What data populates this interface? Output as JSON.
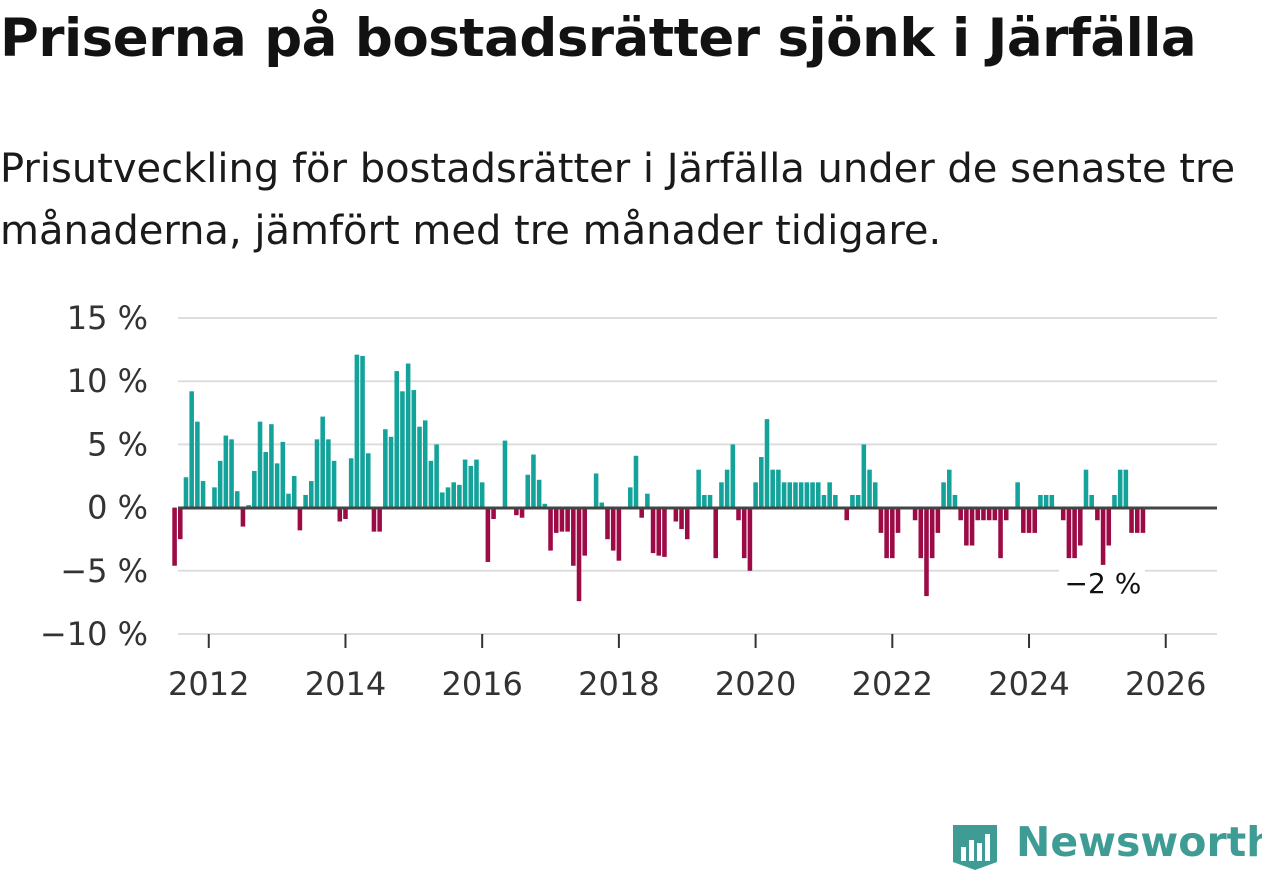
{
  "header": {
    "title": "Priserna på bostadsrätter sjönk i Järfälla",
    "subtitle": "Prisutveckling för bostadsrätter i Järfälla under de senaste tre månaderna, jämfört med tre månader tidigare."
  },
  "brand": {
    "name": "Newsworthy",
    "icon": "newsworthy-logo-icon",
    "color": "#3f9c95"
  },
  "chart_data": {
    "type": "bar",
    "title": "Priserna på bostadsrätter sjönk i Järfälla",
    "subtitle": "Prisutveckling för bostadsrätter i Järfälla under de senaste tre månaderna, jämfört med tre månader tidigare.",
    "xlabel": "",
    "ylabel": "",
    "unit": "%",
    "start": {
      "year": 2011,
      "month": 7
    },
    "frequency": "monthly",
    "xlim": [
      2011.55,
      2026.75
    ],
    "ylim": [
      -10,
      15
    ],
    "yticks": [
      15,
      10,
      5,
      0,
      -5,
      -10
    ],
    "ytick_labels": [
      "15 %",
      "10 %",
      "5 %",
      "0 %",
      "−5 %",
      "−10 %"
    ],
    "xticks": [
      2012,
      2014,
      2016,
      2018,
      2020,
      2022,
      2024,
      2026
    ],
    "xtick_labels": [
      "2012",
      "2014",
      "2016",
      "2018",
      "2020",
      "2022",
      "2024",
      "2026"
    ],
    "grid": true,
    "positive_color": "#13a39a",
    "negative_color": "#9c0b45",
    "end_label": "−2 %",
    "values": [
      -4.6,
      -2.5,
      2.4,
      9.2,
      6.8,
      2.1,
      0,
      1.6,
      3.7,
      5.7,
      5.4,
      1.3,
      -1.5,
      0.2,
      2.9,
      6.8,
      4.4,
      6.6,
      3.5,
      5.2,
      1.1,
      2.5,
      -1.8,
      1.0,
      2.1,
      5.4,
      7.2,
      5.4,
      3.7,
      -1.1,
      -0.9,
      3.9,
      12.1,
      12.0,
      4.3,
      -1.9,
      -1.9,
      6.2,
      5.6,
      10.8,
      9.2,
      11.4,
      9.3,
      6.4,
      6.9,
      3.7,
      5.0,
      1.2,
      1.6,
      2.0,
      1.8,
      3.8,
      3.3,
      3.8,
      2.0,
      -4.3,
      -0.9,
      0,
      5.3,
      0,
      -0.6,
      -0.8,
      2.6,
      4.2,
      2.2,
      0.3,
      -3.4,
      -2.0,
      -1.9,
      -1.9,
      -4.6,
      -7.4,
      -3.8,
      0,
      2.7,
      0.4,
      -2.5,
      -3.4,
      -4.2,
      0,
      1.6,
      4.1,
      -0.8,
      1.1,
      -3.6,
      -3.8,
      -3.9,
      0,
      -1.1,
      -1.7,
      -2.5,
      0,
      3.0,
      1.0,
      1.0,
      -4.0,
      2.0,
      3.0,
      5.0,
      -1.0,
      -4.0,
      -5.0,
      2.0,
      4.0,
      7.0,
      3.0,
      3.0,
      2.0,
      2.0,
      2.0,
      2.0,
      2.0,
      2.0,
      2.0,
      1.0,
      2.0,
      1.0,
      0,
      -1.0,
      1.0,
      1.0,
      5.0,
      3.0,
      2.0,
      -2.0,
      -4.0,
      -4.0,
      -2.0,
      0,
      0,
      -1.0,
      -4.0,
      -7.0,
      -4.0,
      -2.0,
      2.0,
      3.0,
      1.0,
      -1.0,
      -3.0,
      -3.0,
      -1.0,
      -1.0,
      -1.0,
      -1.0,
      -4.0,
      -1.0,
      0,
      2.0,
      -2.0,
      -2.0,
      -2.0,
      1.0,
      1.0,
      1.0,
      0,
      -1.0,
      -4.0,
      -4.0,
      -3.0,
      3.0,
      1.0,
      -1.0,
      -5.0,
      -3.0,
      1.0,
      3.0,
      3.0,
      -2.0,
      -2.0,
      -2.0
    ]
  }
}
